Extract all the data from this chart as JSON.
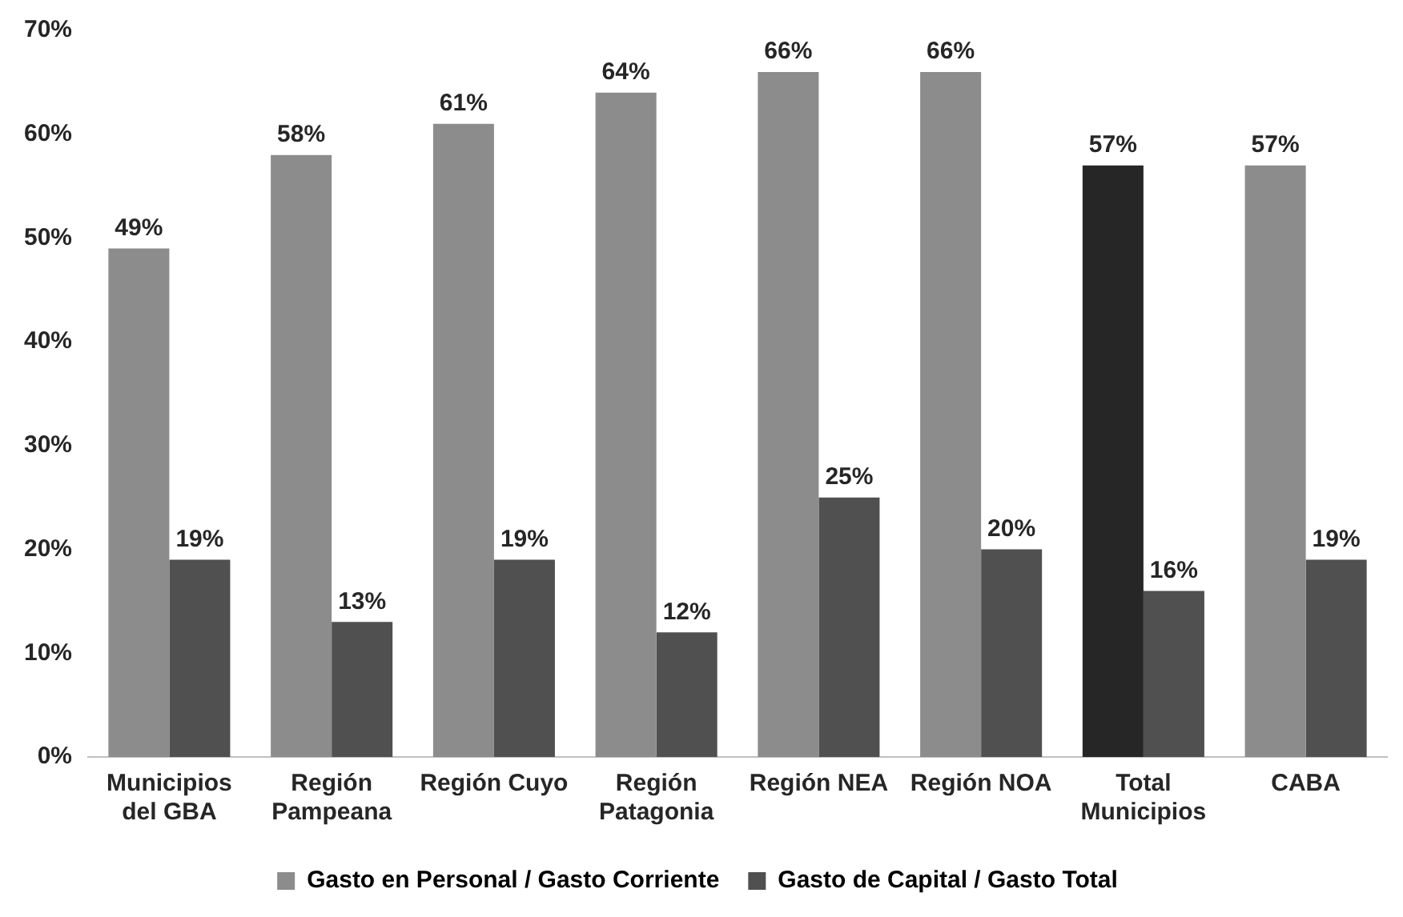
{
  "chart_data": {
    "type": "bar",
    "categories": [
      "Municipios del GBA",
      "Región Pampeana",
      "Región Cuyo",
      "Región Patagonia",
      "Región NEA",
      "Región NOA",
      "Total Municipios",
      "CABA"
    ],
    "series": [
      {
        "name": "Gasto en Personal / Gasto Corriente",
        "color": "#8c8c8c",
        "colors": [
          "#8c8c8c",
          "#8c8c8c",
          "#8c8c8c",
          "#8c8c8c",
          "#8c8c8c",
          "#8c8c8c",
          "#262626",
          "#8c8c8c"
        ],
        "values": [
          49,
          58,
          61,
          64,
          66,
          66,
          57,
          57
        ],
        "value_labels": [
          "49%",
          "58%",
          "61%",
          "64%",
          "66%",
          "66%",
          "57%",
          "57%"
        ]
      },
      {
        "name": "Gasto de Capital / Gasto Total",
        "color": "#505050",
        "values": [
          19,
          13,
          19,
          12,
          25,
          20,
          16,
          19
        ],
        "value_labels": [
          "19%",
          "13%",
          "19%",
          "12%",
          "25%",
          "20%",
          "16%",
          "19%"
        ]
      }
    ],
    "ylim": [
      0,
      70
    ],
    "yticks": [
      {
        "value": 0,
        "label": "0%"
      },
      {
        "value": 10,
        "label": "10%"
      },
      {
        "value": 20,
        "label": "20%"
      },
      {
        "value": 30,
        "label": "30%"
      },
      {
        "value": 40,
        "label": "40%"
      },
      {
        "value": 50,
        "label": "50%"
      },
      {
        "value": 60,
        "label": "60%"
      },
      {
        "value": 70,
        "label": "70%"
      }
    ],
    "grid": false,
    "legend": "bottom"
  }
}
